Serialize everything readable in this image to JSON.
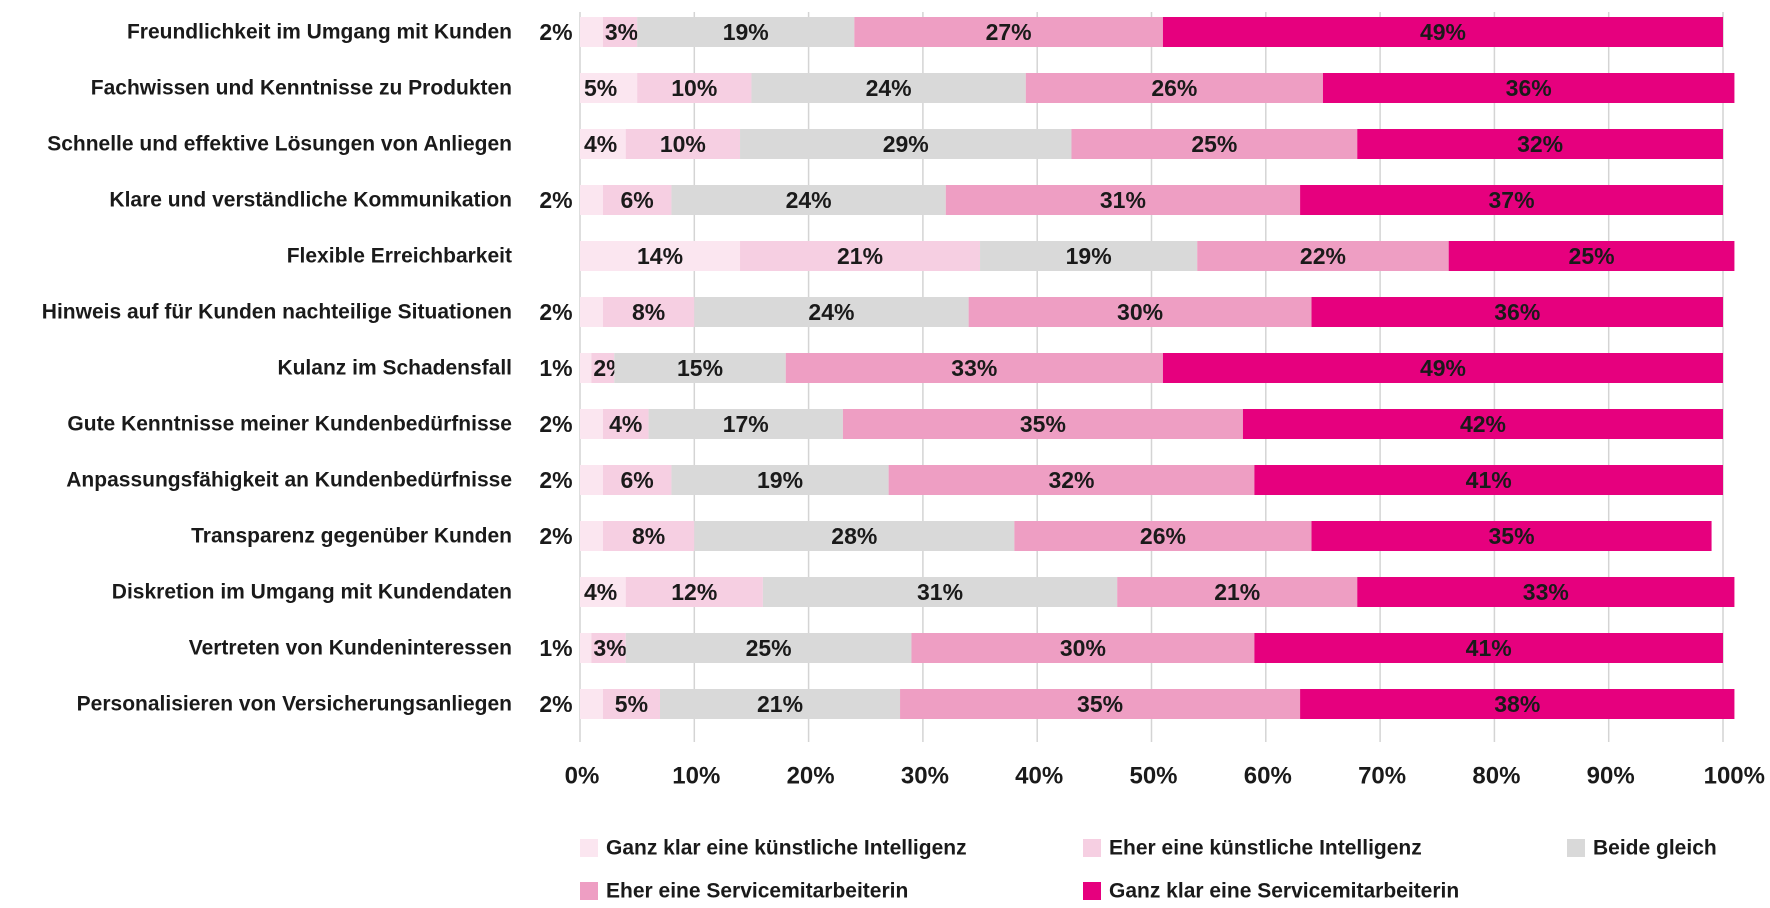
{
  "chart_data": {
    "type": "bar",
    "orientation": "horizontal",
    "stacked": true,
    "categories": [
      "Freundlichkeit im Umgang mit Kunden",
      "Fachwissen und Kenntnisse zu Produkten",
      "Schnelle und effektive Lösungen von Anliegen",
      "Klare und verständliche Kommunikation",
      "Flexible Erreichbarkeit",
      "Hinweis auf für Kunden nachteilige Situationen",
      "Kulanz im Schadensfall",
      "Gute Kenntnisse meiner Kundenbedürfnisse",
      "Anpassungsfähigkeit an Kundenbedürfnisse",
      "Transparenz gegenüber Kunden",
      "Diskretion im Umgang mit Kundendaten",
      "Vertreten von Kundeninteressen",
      "Personalisieren von Versicherungsanliegen"
    ],
    "series": [
      {
        "name": "Ganz klar eine künstliche Intelligenz",
        "color": "#fbe6f0",
        "values": [
          2,
          5,
          4,
          2,
          14,
          2,
          1,
          2,
          2,
          2,
          4,
          1,
          2
        ]
      },
      {
        "name": "Eher eine künstliche Intelligenz",
        "color": "#f6cfe2",
        "values": [
          3,
          10,
          10,
          6,
          21,
          8,
          2,
          4,
          6,
          8,
          12,
          3,
          5
        ]
      },
      {
        "name": "Beide gleich",
        "color": "#d9d9d9",
        "values": [
          19,
          24,
          29,
          24,
          19,
          24,
          15,
          17,
          19,
          28,
          31,
          25,
          21
        ]
      },
      {
        "name": "Eher eine Servicemitarbeiterin",
        "color": "#ee9ec3",
        "values": [
          27,
          26,
          25,
          31,
          22,
          30,
          33,
          35,
          32,
          26,
          21,
          30,
          35
        ]
      },
      {
        "name": "Ganz klar eine Servicemitarbeiterin",
        "color": "#e6007e",
        "values": [
          49,
          36,
          32,
          37,
          25,
          36,
          49,
          42,
          41,
          35,
          33,
          41,
          38
        ]
      }
    ],
    "value_suffix": "%",
    "xlim": [
      0,
      100
    ],
    "x_ticks": [
      0,
      10,
      20,
      30,
      40,
      50,
      60,
      70,
      80,
      90,
      100
    ],
    "x_tick_labels": [
      "0%",
      "10%",
      "20%",
      "30%",
      "40%",
      "50%",
      "60%",
      "70%",
      "80%",
      "90%",
      "100%"
    ],
    "grid": true,
    "legend_position": "bottom"
  }
}
